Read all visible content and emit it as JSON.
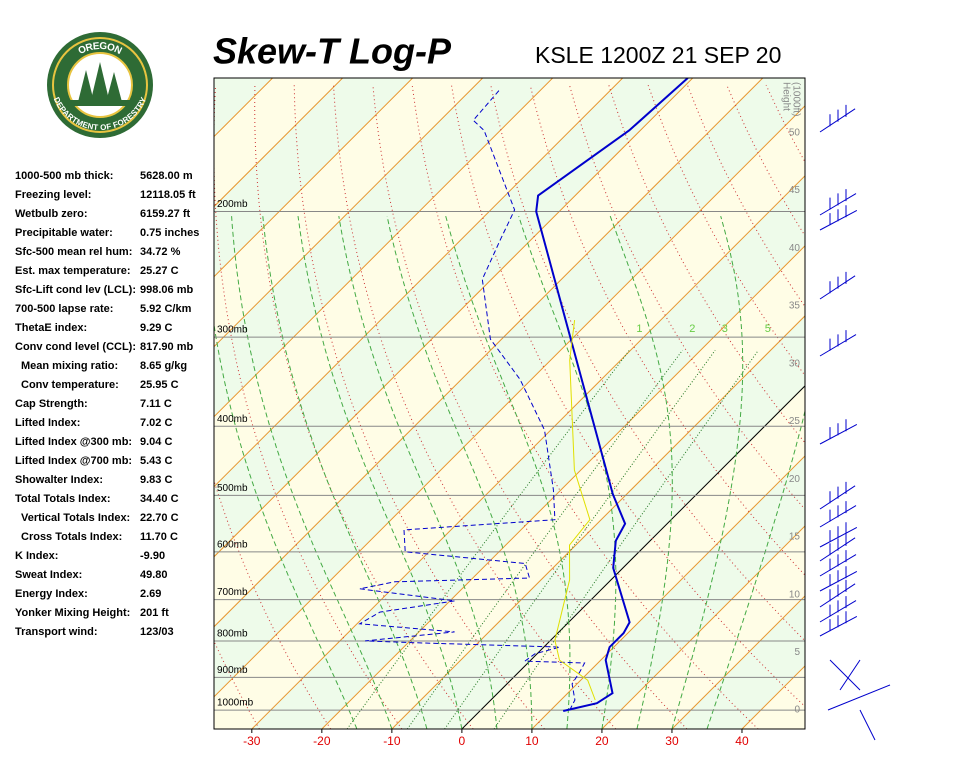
{
  "logo": {
    "top": "OREGON",
    "bottom": "DEPARTMENT OF FORESTRY"
  },
  "indices": [
    [
      "1000-500 mb thick:",
      "5628.00 m"
    ],
    [
      "Freezing level:",
      "12118.05 ft"
    ],
    [
      "Wetbulb zero:",
      "6159.27 ft"
    ],
    [
      "Precipitable water:",
      "0.75 inches"
    ],
    [
      "Sfc-500 mean rel hum:",
      "34.72 %"
    ],
    [
      "Est. max temperature:",
      "25.27 C"
    ],
    [
      "Sfc-Lift cond lev (LCL):",
      "998.06 mb"
    ],
    [
      "700-500 lapse rate:",
      "5.92 C/km"
    ],
    [
      "ThetaE index:",
      "9.29 C"
    ],
    [
      "Conv cond level (CCL):",
      "817.90 mb"
    ],
    [
      "Mean mixing ratio:",
      "8.65 g/kg"
    ],
    [
      "Conv temperature:",
      "25.95 C"
    ],
    [
      "Cap Strength:",
      "7.11 C"
    ],
    [
      "Lifted Index:",
      "7.02 C"
    ],
    [
      "Lifted Index @300 mb:",
      "9.04 C"
    ],
    [
      "Lifted Index @700 mb:",
      "5.43 C"
    ],
    [
      "Showalter Index:",
      "9.83 C"
    ],
    [
      "Total Totals Index:",
      "34.40 C"
    ],
    [
      "Vertical Totals Index:",
      "22.70 C"
    ],
    [
      "Cross Totals Index:",
      "11.70 C"
    ],
    [
      "K Index:",
      "-9.90"
    ],
    [
      "Sweat Index:",
      "49.80"
    ],
    [
      "Energy Index:",
      "2.69"
    ],
    [
      "Yonker Mixing Height:",
      "201 ft"
    ],
    [
      "Transport wind:",
      "123/03"
    ]
  ],
  "chart_data": {
    "type": "skewt",
    "title": "Skew-T Log-P",
    "subtitle": "KSLE 1200Z 21 SEP 20",
    "xlim": [
      -35.4,
      49
    ],
    "xticks": [
      -30,
      -20,
      -10,
      0,
      10,
      20,
      30,
      40
    ],
    "ylim": [
      1063,
      130
    ],
    "log_y": true,
    "yticks": [
      {
        "value": 1000,
        "label": "1000mb"
      },
      {
        "value": 900,
        "label": "900mb"
      },
      {
        "value": 800,
        "label": "800mb"
      },
      {
        "value": 700,
        "label": "700mb"
      },
      {
        "value": 600,
        "label": "600mb"
      },
      {
        "value": 500,
        "label": "500mb"
      },
      {
        "value": 400,
        "label": "400mb"
      },
      {
        "value": 300,
        "label": "300mb"
      },
      {
        "value": 200,
        "label": "200mb"
      }
    ],
    "height_title": [
      "Height",
      "(1000ft)"
    ],
    "height_ticks": [
      0,
      5,
      10,
      15,
      20,
      25,
      30,
      35,
      40,
      45,
      50
    ],
    "mixing_ratio_labels": [
      1,
      2,
      3,
      5
    ],
    "series": [
      {
        "color": "#0000cc",
        "dash": false,
        "pressure": [
          1003,
          978,
          947,
          851,
          816,
          780,
          753,
          632,
          579,
          548,
          498,
          200,
          190,
          154,
          130
        ],
        "values": [
          11.9,
          15.6,
          16.4,
          10.7,
          9.4,
          9.4,
          8.7,
          -1.4,
          -4.9,
          -6.0,
          -12.0,
          -63.3,
          -65.3,
          -61.6,
          -60.7
        ]
      },
      {
        "color": "#0000cc",
        "dash": true,
        "pressure": [
          1000,
          968,
          919,
          885,
          859,
          854,
          834,
          816,
          805,
          800,
          777,
          757,
          729,
          703,
          676,
          661,
          653,
          623,
          600,
          559,
          541,
          491,
          405,
          344,
          302,
          249,
          219,
          199,
          154,
          149,
          135
        ],
        "values": [
          12.7,
          12.0,
          9.3,
          8.7,
          8.1,
          -0.7,
          -0.3,
          2.3,
          -18.3,
          -26.4,
          -14.9,
          -29.6,
          -28.4,
          -19.3,
          -34.6,
          -30.6,
          -11.9,
          -14.6,
          -33.4,
          -36.7,
          -16.6,
          -21.1,
          -30.9,
          -41.6,
          -51.6,
          -61.3,
          -64.4,
          -66.6,
          -82.3,
          -85.3,
          -85.9
        ]
      },
      {
        "color": "#e0e000",
        "dash": false,
        "pressure": [
          968,
          908,
          851,
          798,
          657,
          587,
          541,
          461,
          323,
          284
        ],
        "values": [
          14.9,
          11.0,
          4.1,
          0.6,
          -5.9,
          -10.9,
          -11.6,
          -20.9,
          -37.3,
          -42.3
        ]
      }
    ]
  }
}
